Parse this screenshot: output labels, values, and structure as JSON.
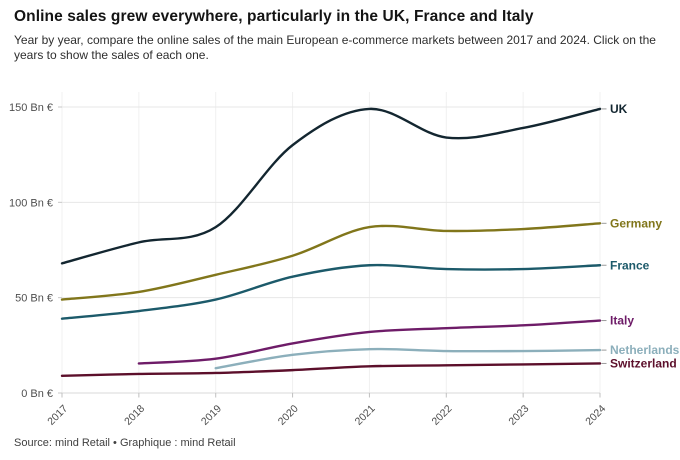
{
  "header": {
    "title": "Online sales grew everywhere, particularly in the UK, France and Italy",
    "subtitle": "Year by year, compare the online sales of the main European e-commerce markets between 2017 and 2024. Click on the years to show the sales of each one."
  },
  "footer": {
    "source": "Source: mind Retail • Graphique : mind Retail"
  },
  "chart_data": {
    "type": "line",
    "title": "Online sales grew everywhere, particularly in the UK, France and Italy",
    "unit": "Bn €",
    "categories": [
      "2017",
      "2018",
      "2019",
      "2020",
      "2021",
      "2022",
      "2023",
      "2024"
    ],
    "y_ticks": [
      0,
      50,
      100,
      150
    ],
    "y_tick_suffix": " Bn €",
    "ylim": [
      0,
      150
    ],
    "grid": true,
    "legend_position": "line-end-labels-right",
    "series": [
      {
        "name": "UK",
        "color": "#132630",
        "values": [
          68,
          79,
          87,
          130,
          149,
          134,
          139,
          149
        ]
      },
      {
        "name": "Germany",
        "color": "#81761b",
        "values": [
          49,
          53,
          62,
          72,
          87,
          85,
          86,
          89
        ]
      },
      {
        "name": "France",
        "color": "#1c5a6a",
        "values": [
          39,
          43,
          49,
          61,
          67,
          65,
          65,
          67
        ]
      },
      {
        "name": "Italy",
        "color": "#6e1c68",
        "values": [
          null,
          15.5,
          18,
          26,
          32,
          34,
          35.5,
          38
        ]
      },
      {
        "name": "Netherlands",
        "color": "#8cafbb",
        "values": [
          null,
          null,
          13,
          20,
          23,
          22,
          22,
          22.5
        ]
      },
      {
        "name": "Switzerland",
        "color": "#5c0f2b",
        "values": [
          9,
          10,
          10.5,
          12,
          14,
          14.5,
          15,
          15.5
        ]
      }
    ]
  }
}
